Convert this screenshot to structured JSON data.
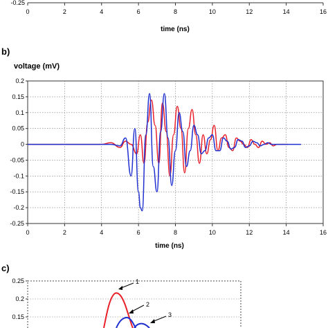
{
  "chart_data": [
    {
      "panel": "a",
      "type": "line",
      "xlabel": "time (ns)",
      "xlim": [
        0,
        16
      ],
      "x_ticks": [
        0,
        2,
        4,
        6,
        8,
        10,
        12,
        14,
        16
      ],
      "y_ticks_visible": [
        -0.25
      ],
      "y_tick_labels_visible": [
        "-0.25"
      ]
    },
    {
      "panel": "b",
      "panel_label": "b)",
      "type": "line",
      "ylabel": "voltage (mV)",
      "xlabel": "time (ns)",
      "xlim": [
        0,
        16
      ],
      "ylim": [
        -0.25,
        0.2
      ],
      "x_ticks": [
        0,
        2,
        4,
        6,
        8,
        10,
        12,
        14,
        16
      ],
      "y_ticks": [
        0.2,
        0.15,
        0.1,
        0.05,
        0,
        -0.05,
        -0.1,
        -0.15,
        -0.2,
        -0.25
      ],
      "y_tick_labels": [
        "0.2",
        "0.15",
        "0.1",
        "0.05",
        "0",
        "-0.05",
        "-0.1",
        "-0.15",
        "-0.2",
        "-0.25"
      ],
      "grid": true,
      "series": [
        {
          "color": "#e8212b",
          "x": [
            0,
            1,
            2,
            3,
            4,
            4.5,
            5,
            5.3,
            5.6,
            5.9,
            6.1,
            6.3,
            6.5,
            6.7,
            6.9,
            7.1,
            7.3,
            7.5,
            7.7,
            7.9,
            8.1,
            8.3,
            8.5,
            8.7,
            8.9,
            9.1,
            9.3,
            9.5,
            9.7,
            9.9,
            10.1,
            10.3,
            10.5,
            10.7,
            10.9,
            11.1,
            11.3,
            11.5,
            11.7,
            11.9,
            12.1,
            12.3,
            12.5,
            12.7,
            12.9,
            13.1,
            13.3,
            13.5,
            13.7,
            13.9,
            14.1
          ],
          "y": [
            0,
            0,
            0,
            0,
            0,
            0.005,
            -0.01,
            0.01,
            0,
            -0.03,
            0.03,
            -0.06,
            0.07,
            0.14,
            0.06,
            -0.06,
            0.13,
            0.04,
            -0.1,
            0.03,
            0.12,
            0.05,
            -0.09,
            0.05,
            0.11,
            0.03,
            -0.06,
            0.03,
            -0.03,
            0.015,
            0.06,
            -0.02,
            0.02,
            0.03,
            -0.01,
            -0.02,
            0.02,
            0.01,
            0.0,
            -0.01,
            0.015,
            0,
            -0.01,
            0.01,
            0,
            0.005,
            -0.005,
            0,
            0,
            0,
            0
          ]
        },
        {
          "color": "#1f2fd0",
          "x": [
            0,
            1,
            2,
            3,
            4,
            4.5,
            5,
            5.3,
            5.6,
            5.8,
            6.0,
            6.1,
            6.2,
            6.4,
            6.6,
            6.8,
            7.0,
            7.2,
            7.4,
            7.6,
            7.8,
            8.0,
            8.2,
            8.4,
            8.6,
            8.8,
            9.0,
            9.2,
            9.4,
            9.6,
            9.8,
            10.0,
            10.2,
            10.4,
            10.6,
            10.8,
            11.0,
            11.2,
            11.4,
            11.6,
            11.8,
            12.0,
            12.2,
            12.4,
            12.6,
            12.8,
            13.0,
            13.2,
            13.4,
            13.6,
            13.8,
            14.0,
            14.2,
            14.5,
            14.8
          ],
          "y": [
            0,
            0,
            0,
            0,
            0,
            0,
            -0.005,
            0.02,
            -0.1,
            0.05,
            -0.15,
            -0.2,
            -0.21,
            0.03,
            0.16,
            -0.07,
            -0.15,
            0.04,
            0.16,
            0.02,
            -0.13,
            -0.02,
            0.1,
            0.04,
            -0.07,
            -0.02,
            0.06,
            0.03,
            -0.03,
            -0.02,
            0.02,
            0.03,
            -0.02,
            -0.02,
            0.02,
            0.01,
            -0.015,
            -0.01,
            0.015,
            0.01,
            -0.01,
            -0.005,
            0.01,
            0.005,
            -0.005,
            0,
            0.005,
            0,
            0,
            0,
            0,
            0,
            0,
            0,
            0
          ]
        }
      ]
    },
    {
      "panel": "c",
      "panel_label": "c)",
      "type": "line",
      "y_ticks_visible": [
        0.25,
        0.2,
        0.15
      ],
      "y_tick_labels_visible": [
        "0.25",
        "0.2",
        "0.15"
      ],
      "annotations": [
        "1",
        "2",
        "3"
      ]
    }
  ]
}
